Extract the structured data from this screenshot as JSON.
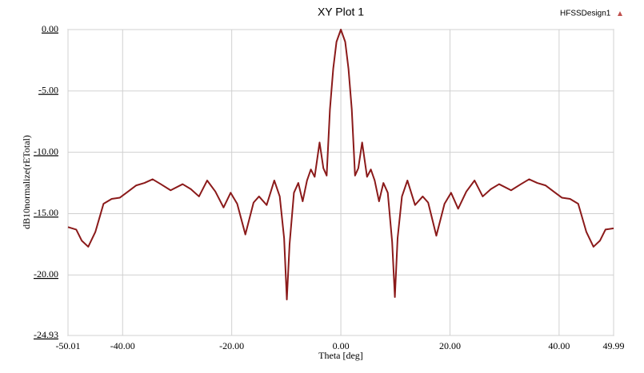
{
  "chart_data": {
    "type": "line",
    "title": "XY Plot 1",
    "design_name": "HFSSDesign1",
    "x_label": "Theta [deg]",
    "y_label": "dB10normalize(rETotal)",
    "x": [
      -50.01,
      -48.5,
      -47.5,
      -46.3,
      -45,
      -43.5,
      -42,
      -40.5,
      -39,
      -37.5,
      -36,
      -34.5,
      -33,
      -31.2,
      -29,
      -27.5,
      -26,
      -24.5,
      -23,
      -21.5,
      -20.2,
      -19,
      -17.5,
      -16,
      -15,
      -13.6,
      -12.2,
      -11.2,
      -10.4,
      -9.9,
      -9.4,
      -8.6,
      -7.8,
      -7,
      -6.2,
      -5.5,
      -4.8,
      -3.9,
      -3.2,
      -2.6,
      -2,
      -1.4,
      -0.8,
      0,
      0.8,
      1.4,
      2,
      2.6,
      3.2,
      3.9,
      4.8,
      5.5,
      6.2,
      7,
      7.8,
      8.6,
      9.4,
      9.9,
      10.4,
      11.2,
      12.2,
      13.6,
      15,
      16,
      17.5,
      19,
      20.2,
      21.5,
      23,
      24.5,
      26,
      27.5,
      29,
      31.2,
      33,
      34.5,
      36,
      37.5,
      39,
      40.5,
      42,
      43.5,
      45,
      46.3,
      47.5,
      48.5,
      49.99
    ],
    "series": [
      {
        "color": "#8b1a1a",
        "values": [
          -16.1,
          -16.3,
          -17.2,
          -17.7,
          -16.5,
          -14.2,
          -13.8,
          -13.7,
          -13.2,
          -12.7,
          -12.5,
          -12.2,
          -12.6,
          -13.1,
          -12.6,
          -13.0,
          -13.6,
          -12.3,
          -13.2,
          -14.5,
          -13.3,
          -14.2,
          -16.7,
          -14.1,
          -13.6,
          -14.3,
          -12.3,
          -13.6,
          -17,
          -22.0,
          -17.5,
          -13.3,
          -12.5,
          -14.0,
          -12.3,
          -11.4,
          -12.0,
          -9.2,
          -11.3,
          -11.9,
          -6.5,
          -3.2,
          -1.0,
          0,
          -1.0,
          -3.2,
          -6.5,
          -11.9,
          -11.3,
          -9.2,
          -12.0,
          -11.4,
          -12.3,
          -14.0,
          -12.5,
          -13.3,
          -17.3,
          -21.8,
          -17,
          -13.6,
          -12.3,
          -14.3,
          -13.6,
          -14.1,
          -16.8,
          -14.2,
          -13.3,
          -14.6,
          -13.2,
          -12.3,
          -13.6,
          -13.0,
          -12.6,
          -13.1,
          -12.6,
          -12.2,
          -12.5,
          -12.7,
          -13.2,
          -13.7,
          -13.8,
          -14.2,
          -16.5,
          -17.7,
          -17.2,
          -16.3,
          -16.2
        ]
      }
    ],
    "xlim": [
      -50.01,
      49.99
    ],
    "xticks": [
      -50.01,
      {
        "value": -40,
        "label": "-40.00"
      },
      {
        "value": -20,
        "label": "-20.00"
      },
      {
        "value": 0,
        "label": "0.00"
      },
      {
        "value": 20,
        "label": "20.00"
      },
      {
        "value": 40,
        "label": "40.00"
      },
      49.99
    ],
    "ylim": [
      -24.93,
      0
    ],
    "yticks": [
      {
        "value": 0,
        "label": "0.00"
      },
      {
        "value": -5,
        "label": "-5.00"
      },
      {
        "value": -10,
        "label": "-10.00"
      },
      {
        "value": -15,
        "label": "-15.00"
      },
      {
        "value": -20,
        "label": "-20.00"
      },
      -24.93
    ],
    "grid": true
  }
}
